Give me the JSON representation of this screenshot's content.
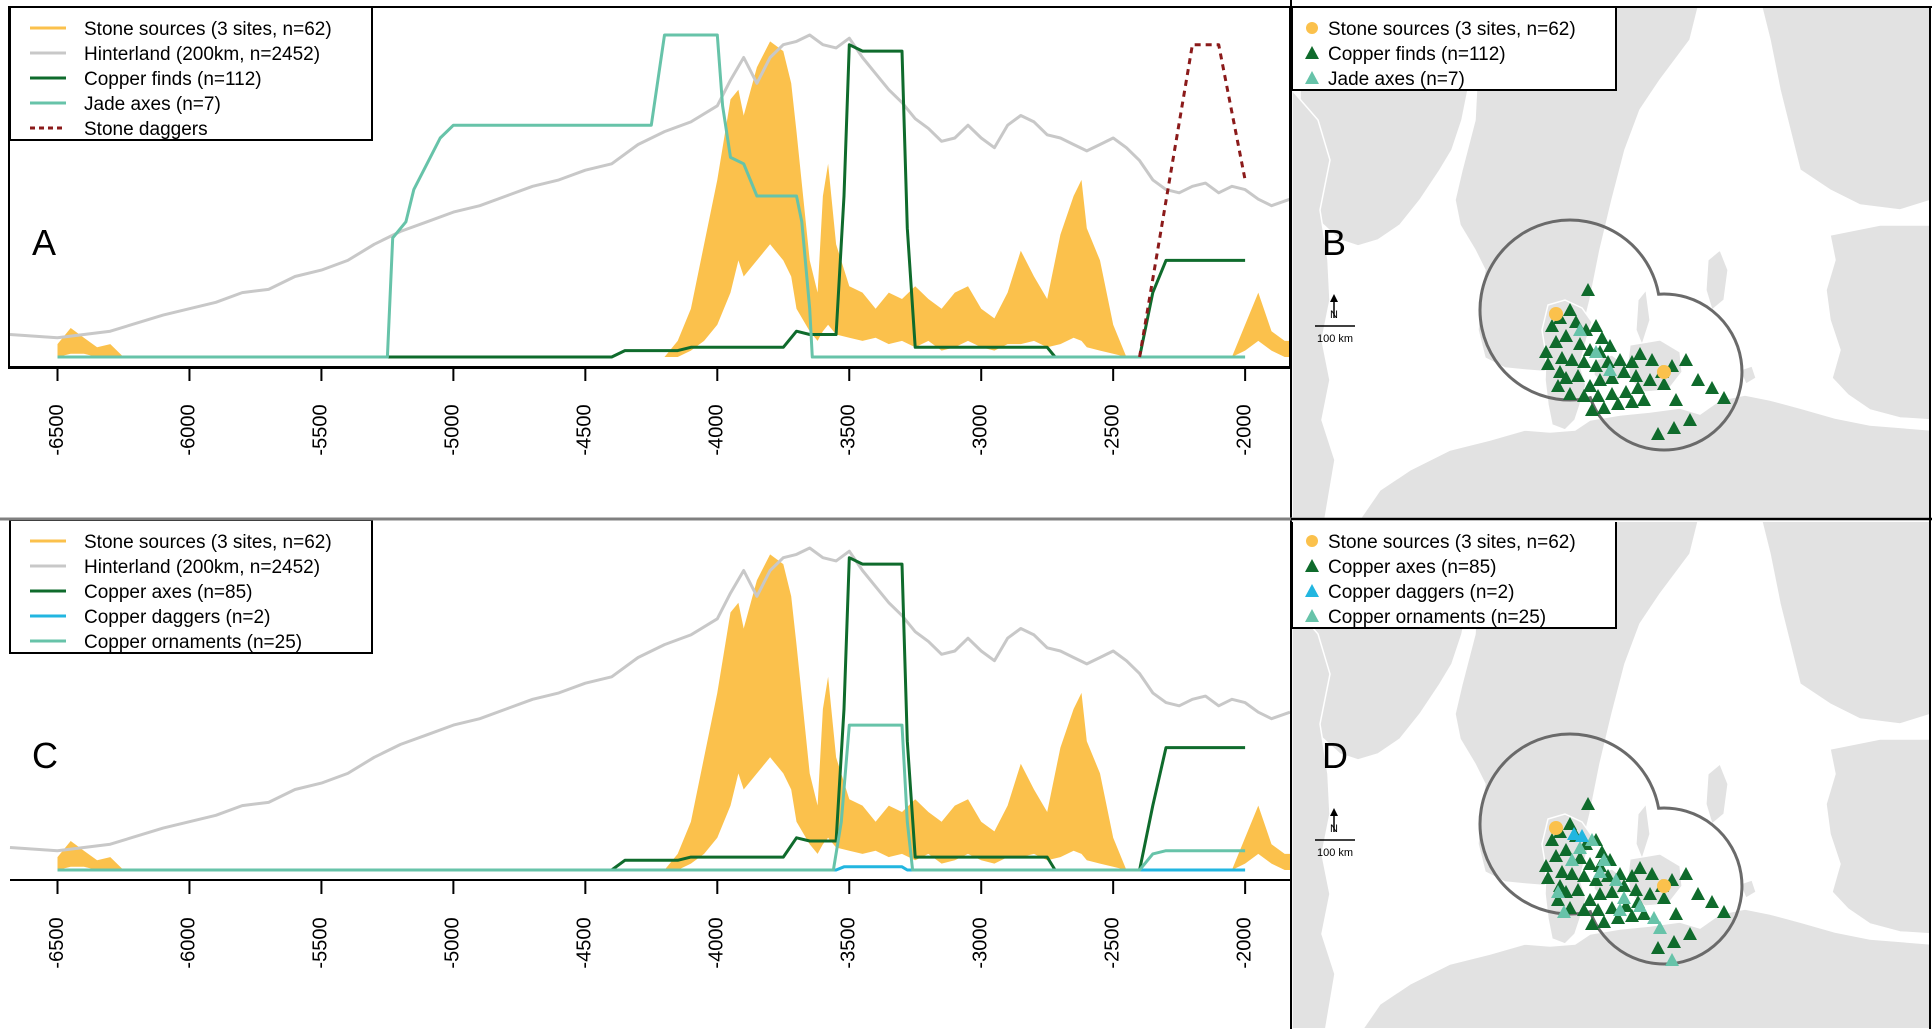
{
  "colors": {
    "stone": "#fbc14c",
    "hinterland": "#c8c8c8",
    "copper": "#0f6b2c",
    "jade": "#67c3a9",
    "dagger_stone": "#8b1a1a",
    "copper_dagger": "#22b6e0",
    "ornament": "#67c3a9",
    "land": "#e2e2e2",
    "circle": "#6a6a6a"
  },
  "panels": {
    "a": {
      "label": "A"
    },
    "b": {
      "label": "B"
    },
    "c": {
      "label": "C"
    },
    "d": {
      "label": "D"
    }
  },
  "scalebar": {
    "north": "N",
    "distance": "100 km"
  },
  "chart_data": [
    {
      "type": "line",
      "panel": "A",
      "x_ticks": [
        -6500,
        -6000,
        -5500,
        -5000,
        -4500,
        -4000,
        -3500,
        -3000,
        -2500,
        -2000
      ],
      "x_tick_labels": [
        "-6500",
        "-6000",
        "-5500",
        "-5000",
        "-4500",
        "-4000",
        "-3500",
        "-3000",
        "-2500",
        "-2000"
      ],
      "xlim": [
        -6680,
        -1830
      ],
      "ylim": [
        0,
        1
      ],
      "legend": [
        {
          "label": "Stone sources (3 sites, n=62)",
          "style": "stone"
        },
        {
          "label": "Hinterland (200km, n=2452)",
          "style": "hinterland"
        },
        {
          "label": "Copper finds (n=112)",
          "style": "copper"
        },
        {
          "label": "Jade axes (n=7)",
          "style": "jade"
        },
        {
          "label": "Stone daggers",
          "style": "dagger_stone"
        }
      ],
      "series": [
        {
          "name": "Hinterland (200km, n=2452)",
          "x": [
            -6680,
            -6500,
            -6300,
            -6100,
            -5900,
            -5800,
            -5700,
            -5600,
            -5500,
            -5400,
            -5300,
            -5200,
            -5100,
            -5000,
            -4900,
            -4800,
            -4700,
            -4600,
            -4500,
            -4400,
            -4300,
            -4200,
            -4100,
            -4000,
            -3950,
            -3900,
            -3850,
            -3800,
            -3750,
            -3700,
            -3650,
            -3600,
            -3550,
            -3500,
            -3450,
            -3400,
            -3350,
            -3300,
            -3250,
            -3200,
            -3150,
            -3100,
            -3050,
            -3000,
            -2950,
            -2900,
            -2850,
            -2800,
            -2750,
            -2700,
            -2650,
            -2600,
            -2550,
            -2500,
            -2450,
            -2400,
            -2350,
            -2300,
            -2250,
            -2200,
            -2150,
            -2100,
            -2050,
            -2000,
            -1950,
            -1900,
            -1830
          ],
          "y": [
            0.07,
            0.06,
            0.08,
            0.13,
            0.17,
            0.2,
            0.21,
            0.25,
            0.27,
            0.3,
            0.35,
            0.39,
            0.42,
            0.45,
            0.47,
            0.5,
            0.53,
            0.55,
            0.58,
            0.6,
            0.66,
            0.7,
            0.73,
            0.78,
            0.86,
            0.93,
            0.85,
            0.93,
            0.97,
            0.98,
            1.0,
            0.97,
            0.96,
            0.99,
            0.93,
            0.88,
            0.83,
            0.79,
            0.74,
            0.71,
            0.67,
            0.68,
            0.72,
            0.68,
            0.65,
            0.72,
            0.75,
            0.73,
            0.69,
            0.68,
            0.66,
            0.64,
            0.66,
            0.68,
            0.65,
            0.61,
            0.55,
            0.52,
            0.51,
            0.53,
            0.54,
            0.51,
            0.53,
            0.52,
            0.49,
            0.47,
            0.49
          ]
        },
        {
          "name": "Copper finds (n=112)",
          "x": [
            -6500,
            -4400,
            -4350,
            -4150,
            -4100,
            -3750,
            -3700,
            -3650,
            -3550,
            -3520,
            -3500,
            -3450,
            -3300,
            -3280,
            -3250,
            -2750,
            -2720,
            -2400,
            -2350,
            -2300,
            -2000
          ],
          "y": [
            0,
            0,
            0.02,
            0.02,
            0.03,
            0.03,
            0.08,
            0.07,
            0.07,
            0.5,
            0.97,
            0.95,
            0.95,
            0.4,
            0.03,
            0.03,
            0,
            0,
            0.2,
            0.3,
            0.3
          ]
        },
        {
          "name": "Jade axes (n=7)",
          "x": [
            -6500,
            -5250,
            -5230,
            -5180,
            -5150,
            -5100,
            -5050,
            -5000,
            -4750,
            -4250,
            -4200,
            -4000,
            -3980,
            -3950,
            -3900,
            -3850,
            -3700,
            -3680,
            -3650,
            -3640,
            -3600,
            -2000
          ],
          "y": [
            0,
            0,
            0.37,
            0.42,
            0.52,
            0.6,
            0.68,
            0.72,
            0.72,
            0.72,
            1.0,
            1.0,
            0.78,
            0.62,
            0.6,
            0.5,
            0.5,
            0.42,
            0.15,
            0,
            0,
            0
          ]
        },
        {
          "name": "Stone daggers",
          "x": [
            -2400,
            -2200,
            -2100,
            -2000
          ],
          "y": [
            0,
            0.97,
            0.97,
            0.55
          ]
        },
        {
          "name": "Stone sources (3 sites, n=62)",
          "band": true,
          "x": [
            -6500,
            -6450,
            -6400,
            -6350,
            -6300,
            -6250,
            -4200,
            -4150,
            -4100,
            -4050,
            -4000,
            -3950,
            -3920,
            -3900,
            -3850,
            -3800,
            -3750,
            -3720,
            -3700,
            -3650,
            -3620,
            -3600,
            -3580,
            -3550,
            -3500,
            -3450,
            -3400,
            -3350,
            -3300,
            -3250,
            -3200,
            -3150,
            -3100,
            -3050,
            -3000,
            -2950,
            -2900,
            -2850,
            -2800,
            -2750,
            -2700,
            -2650,
            -2620,
            -2600,
            -2550,
            -2500,
            -2450,
            -2400,
            -2300,
            -2200,
            -2100,
            -2050,
            -2000,
            -1950,
            -1900,
            -1850,
            -1830
          ],
          "lower": [
            0,
            0.01,
            0.01,
            0,
            0,
            0,
            0,
            0,
            0.02,
            0.05,
            0.1,
            0.2,
            0.3,
            0.25,
            0.3,
            0.35,
            0.3,
            0.25,
            0.15,
            0.08,
            0.05,
            0.08,
            0.1,
            0.07,
            0.06,
            0.05,
            0.06,
            0.04,
            0.05,
            0.03,
            0.05,
            0.02,
            0.03,
            0.05,
            0.03,
            0.02,
            0.04,
            0.04,
            0.05,
            0.03,
            0.04,
            0.06,
            0.05,
            0.03,
            0.02,
            0.01,
            0,
            0,
            0,
            0,
            0,
            0,
            0.02,
            0.05,
            0.02,
            0,
            0
          ],
          "upper": [
            0.04,
            0.09,
            0.06,
            0.03,
            0.04,
            0,
            0,
            0.05,
            0.15,
            0.35,
            0.55,
            0.8,
            0.83,
            0.75,
            0.9,
            0.98,
            0.95,
            0.85,
            0.7,
            0.3,
            0.2,
            0.5,
            0.6,
            0.35,
            0.22,
            0.2,
            0.15,
            0.2,
            0.18,
            0.22,
            0.18,
            0.15,
            0.2,
            0.22,
            0.15,
            0.12,
            0.2,
            0.33,
            0.25,
            0.18,
            0.38,
            0.5,
            0.55,
            0.4,
            0.3,
            0.1,
            0,
            0,
            0,
            0,
            0,
            0,
            0.1,
            0.2,
            0.08,
            0.05,
            0.05
          ]
        }
      ]
    },
    {
      "type": "line",
      "panel": "C",
      "x_ticks": [
        -6500,
        -6000,
        -5500,
        -5000,
        -4500,
        -4000,
        -3500,
        -3000,
        -2500,
        -2000
      ],
      "x_tick_labels": [
        "-6500",
        "-6000",
        "-5500",
        "-5000",
        "-4500",
        "-4000",
        "-3500",
        "-3000",
        "-2500",
        "-2000"
      ],
      "xlim": [
        -6680,
        -1830
      ],
      "ylim": [
        0,
        1
      ],
      "legend": [
        {
          "label": "Stone sources (3 sites, n=62)",
          "style": "stone"
        },
        {
          "label": "Hinterland (200km, n=2452)",
          "style": "hinterland"
        },
        {
          "label": "Copper axes (n=85)",
          "style": "copper"
        },
        {
          "label": "Copper daggers (n=2)",
          "style": "copper_dagger"
        },
        {
          "label": "Copper ornaments (n=25)",
          "style": "ornament"
        }
      ],
      "series": [
        {
          "name": "Hinterland (200km, n=2452)",
          "x": [
            -6680,
            -6500,
            -6300,
            -6100,
            -5900,
            -5800,
            -5700,
            -5600,
            -5500,
            -5400,
            -5300,
            -5200,
            -5100,
            -5000,
            -4900,
            -4800,
            -4700,
            -4600,
            -4500,
            -4400,
            -4300,
            -4200,
            -4100,
            -4000,
            -3950,
            -3900,
            -3850,
            -3800,
            -3750,
            -3700,
            -3650,
            -3600,
            -3550,
            -3500,
            -3450,
            -3400,
            -3350,
            -3300,
            -3250,
            -3200,
            -3150,
            -3100,
            -3050,
            -3000,
            -2950,
            -2900,
            -2850,
            -2800,
            -2750,
            -2700,
            -2650,
            -2600,
            -2550,
            -2500,
            -2450,
            -2400,
            -2350,
            -2300,
            -2250,
            -2200,
            -2150,
            -2100,
            -2050,
            -2000,
            -1950,
            -1900,
            -1830
          ],
          "y": [
            0.07,
            0.06,
            0.08,
            0.13,
            0.17,
            0.2,
            0.21,
            0.25,
            0.27,
            0.3,
            0.35,
            0.39,
            0.42,
            0.45,
            0.47,
            0.5,
            0.53,
            0.55,
            0.58,
            0.6,
            0.66,
            0.7,
            0.73,
            0.78,
            0.86,
            0.93,
            0.85,
            0.93,
            0.97,
            0.98,
            1.0,
            0.97,
            0.96,
            0.99,
            0.93,
            0.88,
            0.83,
            0.79,
            0.74,
            0.71,
            0.67,
            0.68,
            0.72,
            0.68,
            0.65,
            0.72,
            0.75,
            0.73,
            0.69,
            0.68,
            0.66,
            0.64,
            0.66,
            0.68,
            0.65,
            0.61,
            0.55,
            0.52,
            0.51,
            0.53,
            0.54,
            0.51,
            0.53,
            0.52,
            0.49,
            0.47,
            0.49
          ]
        },
        {
          "name": "Copper axes (n=85)",
          "x": [
            -6500,
            -4400,
            -4350,
            -4150,
            -4100,
            -3750,
            -3700,
            -3650,
            -3550,
            -3520,
            -3500,
            -3450,
            -3300,
            -3280,
            -3250,
            -2750,
            -2720,
            -2400,
            -2350,
            -2300,
            -2000
          ],
          "y": [
            0,
            0,
            0.03,
            0.03,
            0.04,
            0.04,
            0.1,
            0.09,
            0.09,
            0.5,
            0.97,
            0.95,
            0.95,
            0.4,
            0.04,
            0.04,
            0,
            0,
            0.2,
            0.38,
            0.38
          ]
        },
        {
          "name": "Copper daggers (n=2)",
          "x": [
            -6500,
            -3550,
            -3520,
            -3500,
            -3300,
            -3280,
            -2000
          ],
          "y": [
            0,
            0,
            0.01,
            0.01,
            0.01,
            0,
            0
          ]
        },
        {
          "name": "Copper ornaments (n=25)",
          "x": [
            -6500,
            -3560,
            -3530,
            -3500,
            -3300,
            -3280,
            -3260,
            -2400,
            -2350,
            -2300,
            -2000
          ],
          "y": [
            0,
            0,
            0.15,
            0.45,
            0.45,
            0.15,
            0,
            0,
            0.05,
            0.06,
            0.06
          ]
        },
        {
          "name": "Stone sources (3 sites, n=62)",
          "band": true,
          "x": [
            -6500,
            -6450,
            -6400,
            -6350,
            -6300,
            -6250,
            -4200,
            -4150,
            -4100,
            -4050,
            -4000,
            -3950,
            -3920,
            -3900,
            -3850,
            -3800,
            -3750,
            -3720,
            -3700,
            -3650,
            -3620,
            -3600,
            -3580,
            -3550,
            -3500,
            -3450,
            -3400,
            -3350,
            -3300,
            -3250,
            -3200,
            -3150,
            -3100,
            -3050,
            -3000,
            -2950,
            -2900,
            -2850,
            -2800,
            -2750,
            -2700,
            -2650,
            -2620,
            -2600,
            -2550,
            -2500,
            -2450,
            -2400,
            -2300,
            -2200,
            -2100,
            -2050,
            -2000,
            -1950,
            -1900,
            -1850,
            -1830
          ],
          "lower": [
            0,
            0.01,
            0.01,
            0,
            0,
            0,
            0,
            0,
            0.02,
            0.05,
            0.1,
            0.2,
            0.3,
            0.25,
            0.3,
            0.35,
            0.3,
            0.25,
            0.15,
            0.08,
            0.05,
            0.08,
            0.1,
            0.07,
            0.06,
            0.05,
            0.06,
            0.04,
            0.05,
            0.03,
            0.05,
            0.02,
            0.03,
            0.05,
            0.03,
            0.02,
            0.04,
            0.04,
            0.05,
            0.03,
            0.04,
            0.06,
            0.05,
            0.03,
            0.02,
            0.01,
            0,
            0,
            0,
            0,
            0,
            0,
            0.02,
            0.05,
            0.02,
            0,
            0
          ],
          "upper": [
            0.04,
            0.09,
            0.06,
            0.03,
            0.04,
            0,
            0,
            0.05,
            0.15,
            0.35,
            0.55,
            0.8,
            0.83,
            0.75,
            0.9,
            0.98,
            0.95,
            0.85,
            0.7,
            0.3,
            0.2,
            0.5,
            0.6,
            0.35,
            0.22,
            0.2,
            0.15,
            0.2,
            0.18,
            0.22,
            0.18,
            0.15,
            0.2,
            0.22,
            0.15,
            0.12,
            0.2,
            0.33,
            0.25,
            0.18,
            0.38,
            0.5,
            0.55,
            0.4,
            0.3,
            0.1,
            0,
            0,
            0,
            0,
            0,
            0,
            0.1,
            0.2,
            0.08,
            0.05,
            0.05
          ]
        }
      ]
    }
  ],
  "maps": {
    "b": {
      "legend": [
        {
          "label": "Stone sources (3 sites, n=62)",
          "marker": "circle",
          "style": "stone"
        },
        {
          "label": "Copper finds (n=112)",
          "marker": "triangle",
          "style": "copper"
        },
        {
          "label": "Jade axes (n=7)",
          "marker": "triangle",
          "style": "jade"
        }
      ]
    },
    "d": {
      "legend": [
        {
          "label": "Stone sources (3 sites, n=62)",
          "marker": "circle",
          "style": "stone"
        },
        {
          "label": "Copper axes (n=85)",
          "marker": "triangle",
          "style": "copper"
        },
        {
          "label": "Copper daggers (n=2)",
          "marker": "triangle",
          "style": "copper_dagger"
        },
        {
          "label": "Copper ornaments (n=25)",
          "marker": "triangle",
          "style": "ornament"
        }
      ]
    }
  }
}
